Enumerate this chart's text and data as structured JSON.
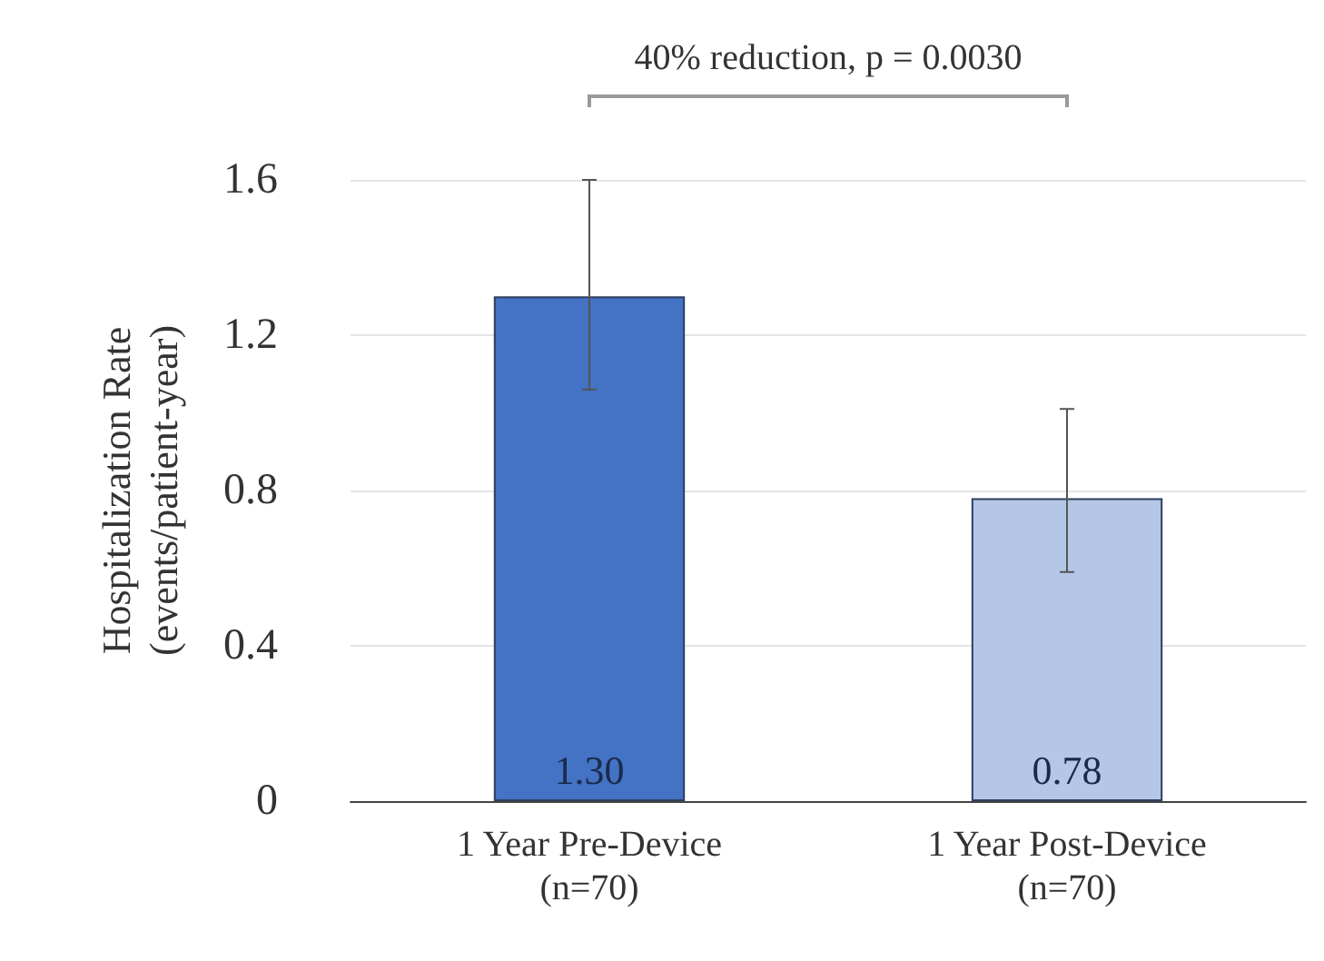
{
  "chart_data": {
    "type": "bar",
    "ylabel": "Hospitalization Rate\n(events/patient-year)",
    "categories": [
      "1 Year Pre-Device\n(n=70)",
      "1 Year Post-Device\n(n=70)"
    ],
    "values": [
      1.3,
      0.78
    ],
    "colors": [
      "#4472c4",
      "#b4c7e7"
    ],
    "value_labels": [
      "1.30",
      "0.78"
    ],
    "errors": [
      [
        1.06,
        1.6
      ],
      [
        0.59,
        1.01
      ]
    ],
    "ylim": [
      0,
      1.6
    ],
    "yticks": [
      0,
      0.4,
      0.8,
      1.2,
      1.6
    ],
    "grid": "y",
    "annotations": [
      "40% reduction, p = 0.0030"
    ]
  }
}
